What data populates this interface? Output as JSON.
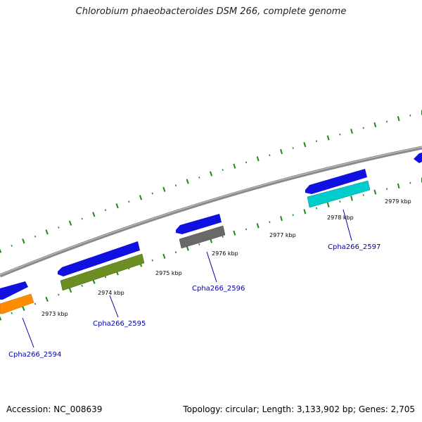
{
  "title": "Chlorobium phaeobacteroides DSM 266, complete genome",
  "footer": {
    "accession": "Accession: NC_008639",
    "summary": "Topology: circular; Length: 3,133,902 bp; Genes: 2,705"
  },
  "colors": {
    "backbone": "#8a8a8a",
    "tick": "#1a8a1a",
    "cds": "#1010e0",
    "label": "#0000aa"
  },
  "kbp_labels": [
    "2973 kbp",
    "2974 kbp",
    "2975 kbp",
    "2976 kbp",
    "2977 kbp",
    "2978 kbp",
    "2979 kbp"
  ],
  "genes": [
    {
      "label": "Cpha266_2594",
      "color": "#ff8c00"
    },
    {
      "label": "Cpha266_2595",
      "color": "#6b8e23"
    },
    {
      "label": "Cpha266_2596",
      "color": "#696969"
    },
    {
      "label": "Cpha266_2597",
      "color": "#00cccc"
    }
  ]
}
